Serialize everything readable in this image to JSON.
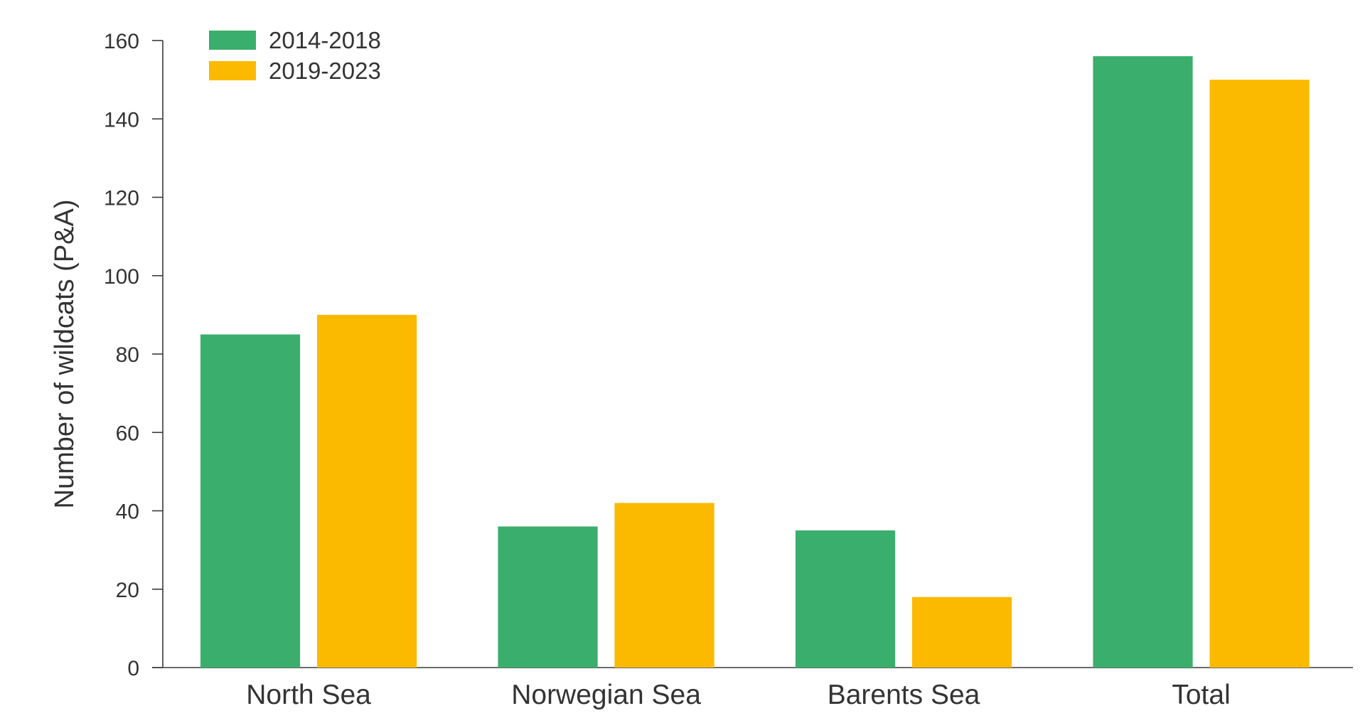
{
  "chart_data": {
    "type": "bar",
    "title": "",
    "xlabel": "",
    "ylabel": "Number of wildcats (P&A)",
    "ylim": [
      0,
      160
    ],
    "yticks": [
      0,
      20,
      40,
      60,
      80,
      100,
      120,
      140,
      160
    ],
    "categories": [
      "North Sea",
      "Norwegian Sea",
      "Barents Sea",
      "Total"
    ],
    "series": [
      {
        "name": "2014-2018",
        "color": "#3aae6c",
        "values": [
          85,
          36,
          35,
          156
        ]
      },
      {
        "name": "2019-2023",
        "color": "#fbb900",
        "values": [
          90,
          42,
          18,
          150
        ]
      }
    ],
    "legend_position": "top-left",
    "grid": false
  }
}
